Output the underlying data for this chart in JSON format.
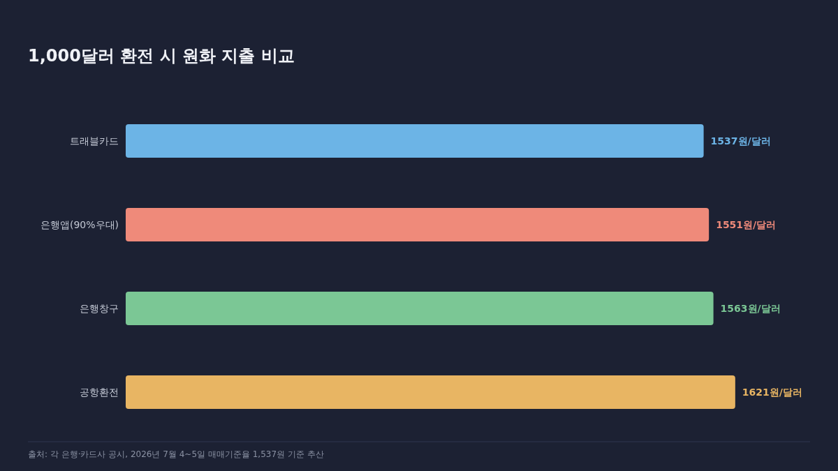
{
  "chart_data": {
    "type": "bar",
    "orientation": "horizontal",
    "title": "1,000달러 환전 시 원화 지출 비교",
    "categories": [
      "트래블카드",
      "은행앱(90%우대)",
      "은행창구",
      "공항환전"
    ],
    "values": [
      1537,
      1551,
      1563,
      1621
    ],
    "colors": [
      "#6cb4e6",
      "#ef8a7a",
      "#7bc795",
      "#e8b563"
    ],
    "value_labels": [
      "1537원/달러",
      "1551원/달러",
      "1563원/달러",
      "1621원/달러"
    ],
    "xlim": [
      0,
      1820
    ],
    "annotations": [
      "출처: 각 은행·카드사 공시, 2026년 7월 4~5일 매매기준율 1,537원 기준 추산"
    ]
  }
}
